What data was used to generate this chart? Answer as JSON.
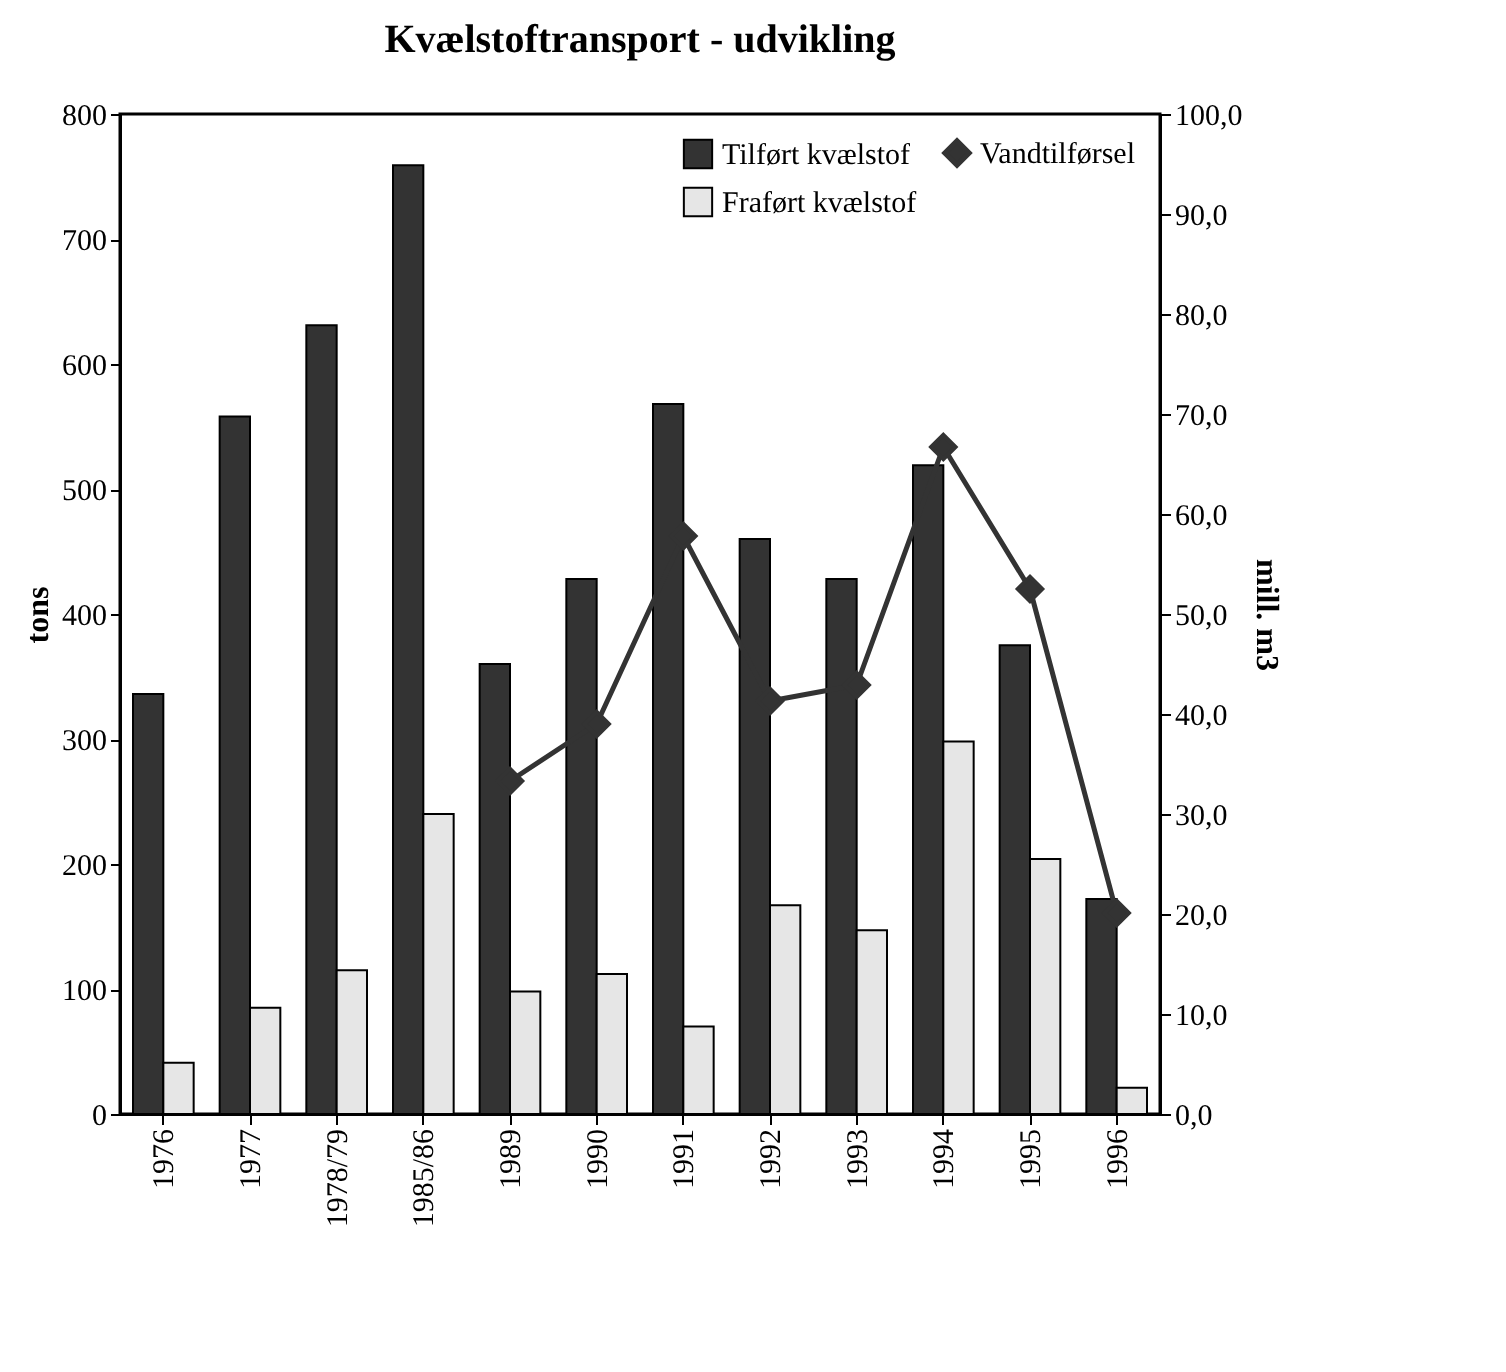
{
  "chart_data": {
    "type": "bar",
    "title": "Kvælstoftransport - udvikling",
    "ylabel": "tons",
    "y2label": "mill. m3",
    "categories": [
      "1976",
      "1977",
      "1978/79",
      "1985/86",
      "1989",
      "1990",
      "1991",
      "1992",
      "1993",
      "1994",
      "1995",
      "1996"
    ],
    "series": [
      {
        "name": "Tilført kvælstof",
        "color": "#333333",
        "values": [
          336,
          558,
          631,
          759,
          360,
          428,
          568,
          460,
          428,
          519,
          375,
          172
        ]
      },
      {
        "name": "Fraført kvælstof",
        "color": "#e6e6e6",
        "values": [
          41,
          85,
          115,
          240,
          98,
          112,
          70,
          167,
          147,
          298,
          204,
          21
        ]
      },
      {
        "name": "Vandtilførsel",
        "color": "#333333",
        "type": "line",
        "axis": "y2",
        "values": [
          null,
          null,
          null,
          null,
          33.3,
          39,
          57.8,
          41.3,
          42.9,
          66.7,
          52.5,
          20.1
        ]
      }
    ],
    "ylim": [
      0,
      800
    ],
    "yticks": [
      0,
      100,
      200,
      300,
      400,
      500,
      600,
      700,
      800
    ],
    "y2lim": [
      0,
      100
    ],
    "y2ticks": [
      {
        "value": 0,
        "label": "0,0"
      },
      {
        "value": 10,
        "label": "10,0"
      },
      {
        "value": 20,
        "label": "20,0"
      },
      {
        "value": 30,
        "label": "30,0"
      },
      {
        "value": 40,
        "label": "40,0"
      },
      {
        "value": 50,
        "label": "50,0"
      },
      {
        "value": 60,
        "label": "60,0"
      },
      {
        "value": 70,
        "label": "70,0"
      },
      {
        "value": 80,
        "label": "80,0"
      },
      {
        "value": 90,
        "label": "90,0"
      },
      {
        "value": 100,
        "label": "100,0"
      }
    ],
    "legend": "top right",
    "grid": false,
    "marker": "diamond",
    "line_style": "solid"
  }
}
